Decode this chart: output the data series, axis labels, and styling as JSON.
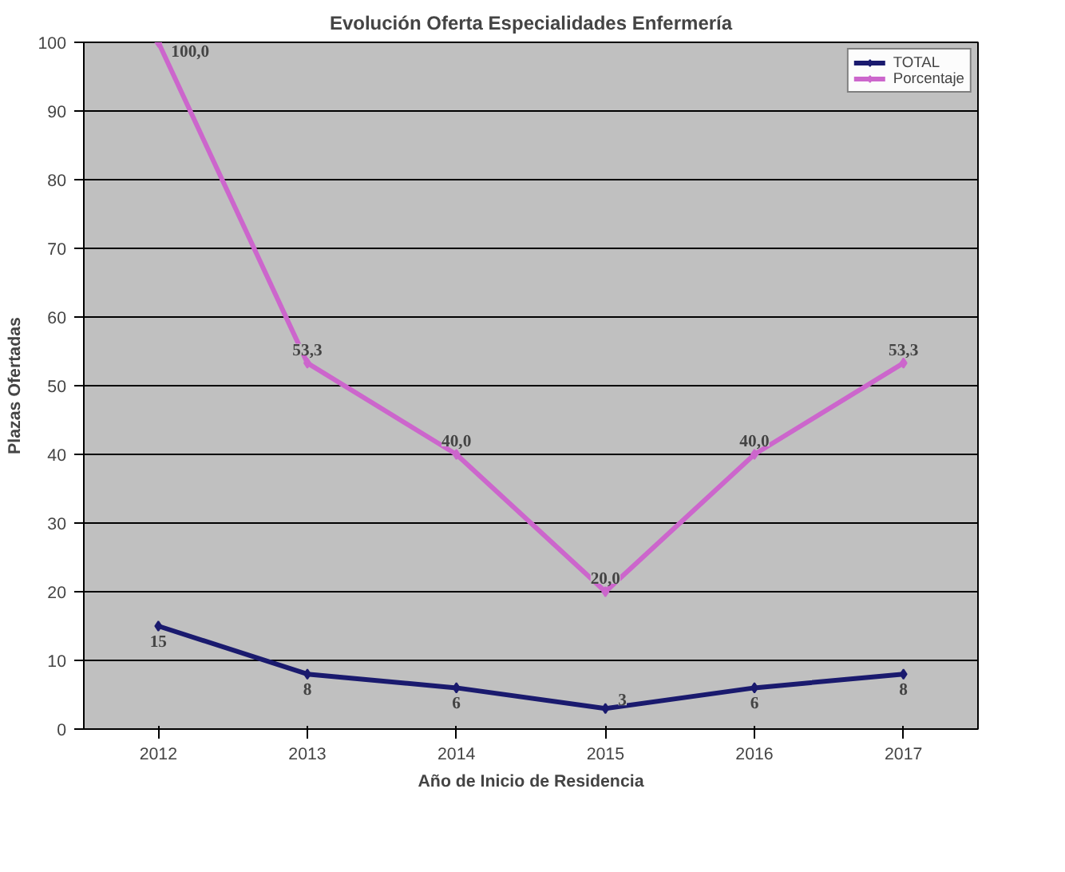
{
  "chart_data": {
    "type": "line",
    "title": "Evolución Oferta Especialidades Enfermería",
    "xlabel": "Año de Inicio de Residencia",
    "ylabel": "Plazas Ofertadas",
    "categories": [
      "2012",
      "2013",
      "2014",
      "2015",
      "2016",
      "2017"
    ],
    "series": [
      {
        "name": "TOTAL",
        "color": "#1a1a6e",
        "values": [
          15,
          8,
          6,
          3,
          6,
          8
        ],
        "value_labels": [
          "15",
          "8",
          "6",
          "3",
          "6",
          "8"
        ]
      },
      {
        "name": "Porcentaje",
        "color": "#cc66cc",
        "values": [
          100.0,
          53.3,
          40.0,
          20.0,
          40.0,
          53.3
        ],
        "value_labels": [
          "100,0",
          "53,3",
          "40,0",
          "20,0",
          "40,0",
          "53,3"
        ]
      }
    ],
    "ylim": [
      0,
      100
    ],
    "yticks": [
      0,
      10,
      20,
      30,
      40,
      50,
      60,
      70,
      80,
      90,
      100
    ],
    "grid": "y",
    "legend": "top right",
    "marker": "diamond",
    "line_style": "solid"
  }
}
